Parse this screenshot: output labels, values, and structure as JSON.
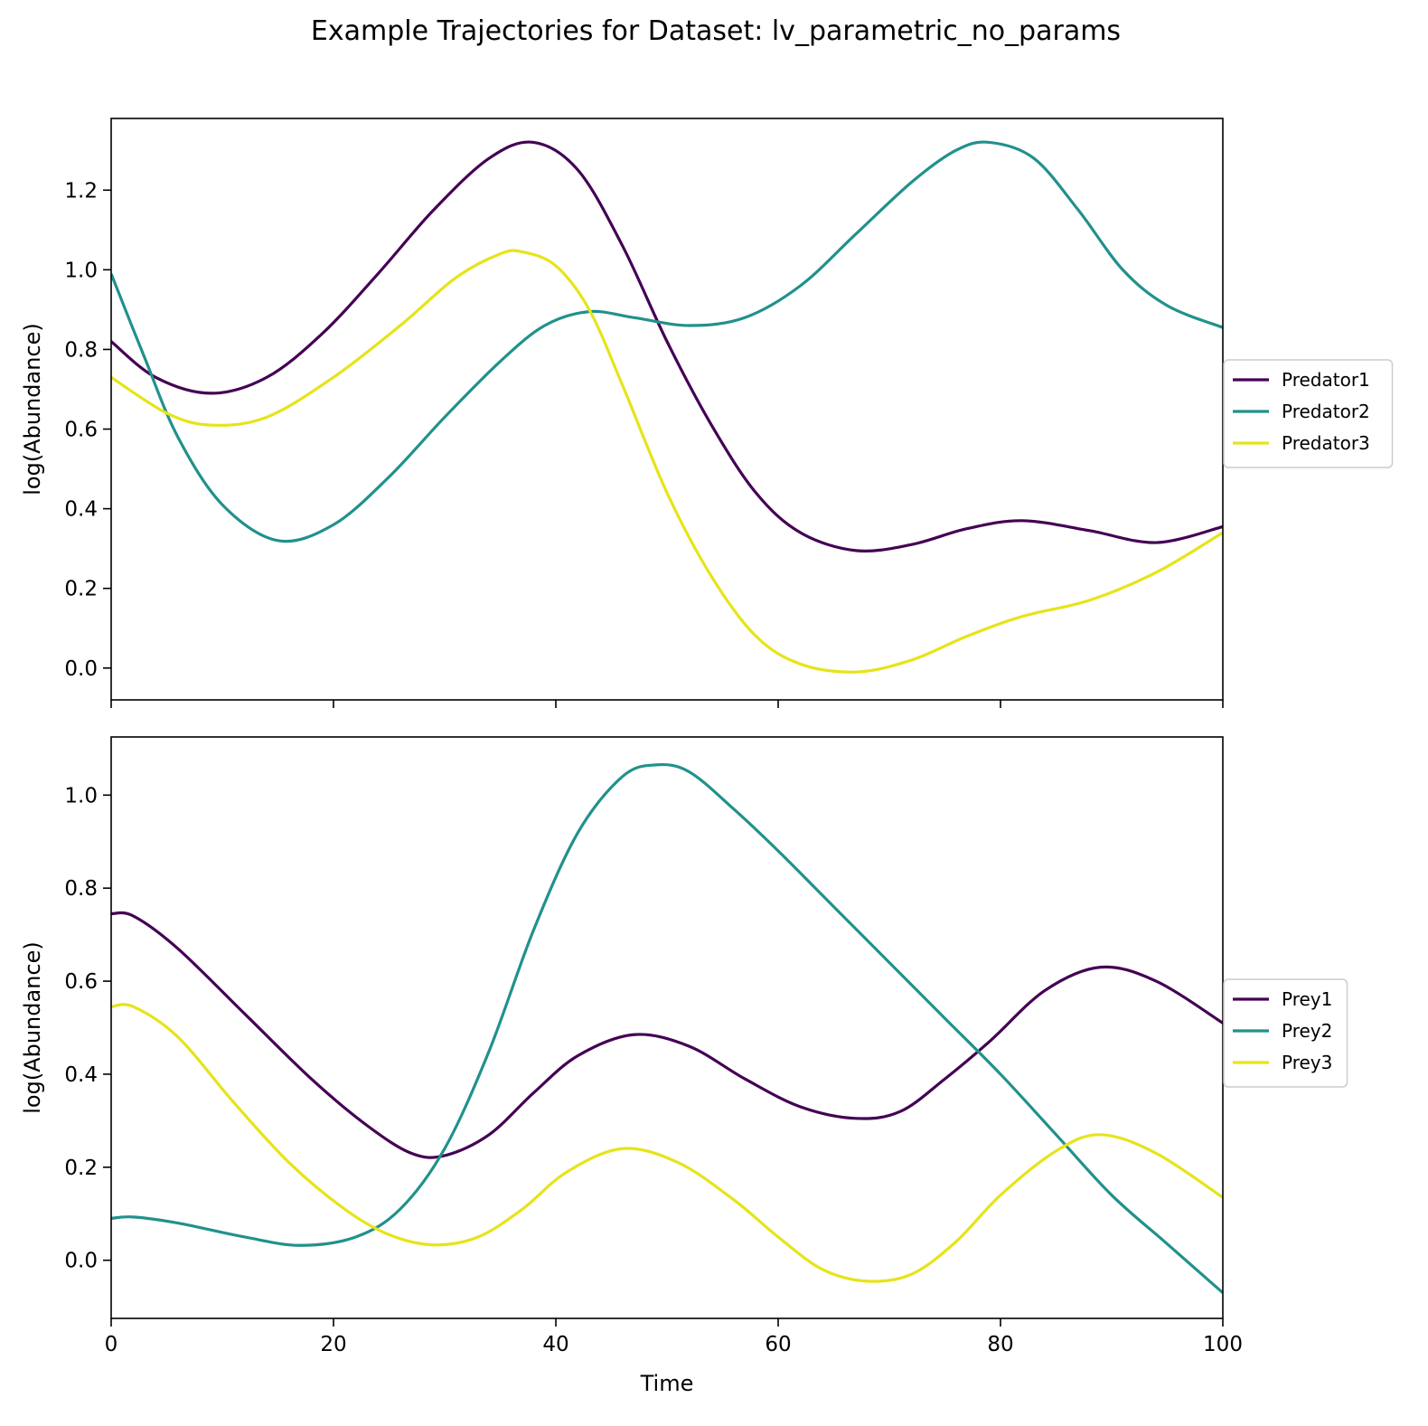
{
  "figure": {
    "title": "Example Trajectories for Dataset: lv_parametric_no_params"
  },
  "chart_data": [
    {
      "type": "line",
      "xlabel": "",
      "ylabel": "log(Abundance)",
      "xlim": [
        0,
        100
      ],
      "ylim": [
        -0.08,
        1.38
      ],
      "xticks": [
        0,
        20,
        40,
        60,
        80,
        100
      ],
      "yticks": [
        0.0,
        0.2,
        0.4,
        0.6,
        0.8,
        1.0,
        1.2
      ],
      "show_xtick_labels": false,
      "legend": "center-right-outside",
      "grid": false,
      "series": [
        {
          "name": "Predator1",
          "color": "#440154",
          "x": [
            0,
            4,
            9,
            14,
            19,
            24,
            29,
            34,
            38,
            42,
            46,
            50,
            54,
            58,
            62,
            67,
            72,
            77,
            82,
            88,
            94,
            100
          ],
          "y": [
            0.82,
            0.73,
            0.69,
            0.73,
            0.84,
            0.99,
            1.15,
            1.28,
            1.32,
            1.25,
            1.06,
            0.82,
            0.61,
            0.44,
            0.34,
            0.295,
            0.31,
            0.35,
            0.37,
            0.345,
            0.315,
            0.355
          ]
        },
        {
          "name": "Predator2",
          "color": "#21918c",
          "x": [
            0,
            3,
            6,
            10,
            15,
            20,
            25,
            30,
            35,
            39,
            43,
            47,
            52,
            57,
            62,
            67,
            72,
            76,
            79,
            83,
            87,
            91,
            95,
            100
          ],
          "y": [
            0.99,
            0.78,
            0.58,
            0.41,
            0.32,
            0.36,
            0.48,
            0.63,
            0.77,
            0.86,
            0.895,
            0.88,
            0.86,
            0.88,
            0.96,
            1.09,
            1.22,
            1.3,
            1.32,
            1.28,
            1.15,
            1.0,
            0.91,
            0.855
          ]
        },
        {
          "name": "Predator3",
          "color": "#e6e419",
          "x": [
            0,
            5,
            9,
            14,
            20,
            26,
            31,
            35,
            37,
            40,
            43,
            46,
            50,
            54,
            58,
            62,
            67,
            72,
            77,
            82,
            88,
            94,
            100
          ],
          "y": [
            0.73,
            0.64,
            0.61,
            0.63,
            0.73,
            0.86,
            0.98,
            1.04,
            1.045,
            1.01,
            0.9,
            0.71,
            0.44,
            0.23,
            0.08,
            0.01,
            -0.01,
            0.02,
            0.08,
            0.13,
            0.17,
            0.24,
            0.34
          ]
        }
      ]
    },
    {
      "type": "line",
      "xlabel": "Time",
      "ylabel": "log(Abundance)",
      "xlim": [
        0,
        100
      ],
      "ylim": [
        -0.125,
        1.125
      ],
      "xticks": [
        0,
        20,
        40,
        60,
        80,
        100
      ],
      "yticks": [
        0.0,
        0.2,
        0.4,
        0.6,
        0.8,
        1.0
      ],
      "show_xtick_labels": true,
      "legend": "center-right-outside",
      "grid": false,
      "series": [
        {
          "name": "Prey1",
          "color": "#440154",
          "x": [
            0,
            2,
            6,
            12,
            18,
            23,
            27,
            30,
            34,
            38,
            42,
            47,
            52,
            57,
            62,
            67,
            71,
            75,
            79,
            84,
            89,
            94,
            100
          ],
          "y": [
            0.745,
            0.74,
            0.67,
            0.53,
            0.39,
            0.29,
            0.23,
            0.225,
            0.27,
            0.36,
            0.44,
            0.485,
            0.46,
            0.39,
            0.33,
            0.305,
            0.32,
            0.39,
            0.47,
            0.58,
            0.63,
            0.6,
            0.51
          ]
        },
        {
          "name": "Prey2",
          "color": "#21918c",
          "x": [
            0,
            2,
            6,
            12,
            17,
            22,
            26,
            30,
            34,
            38,
            42,
            46,
            49,
            52,
            56,
            60,
            65,
            70,
            75,
            80,
            85,
            90,
            95,
            100
          ],
          "y": [
            0.09,
            0.093,
            0.08,
            0.05,
            0.032,
            0.05,
            0.11,
            0.24,
            0.45,
            0.71,
            0.92,
            1.04,
            1.065,
            1.05,
            0.97,
            0.88,
            0.76,
            0.64,
            0.52,
            0.4,
            0.27,
            0.14,
            0.035,
            -0.07
          ]
        },
        {
          "name": "Prey3",
          "color": "#e6e419",
          "x": [
            0,
            2,
            6,
            11,
            16,
            21,
            25,
            29,
            33,
            37,
            41,
            46,
            51,
            56,
            60,
            64,
            68,
            72,
            76,
            80,
            85,
            89,
            94,
            100
          ],
          "y": [
            0.545,
            0.545,
            0.48,
            0.34,
            0.21,
            0.11,
            0.055,
            0.033,
            0.05,
            0.11,
            0.19,
            0.24,
            0.21,
            0.13,
            0.05,
            -0.02,
            -0.045,
            -0.03,
            0.04,
            0.14,
            0.235,
            0.27,
            0.23,
            0.135
          ]
        }
      ]
    }
  ]
}
